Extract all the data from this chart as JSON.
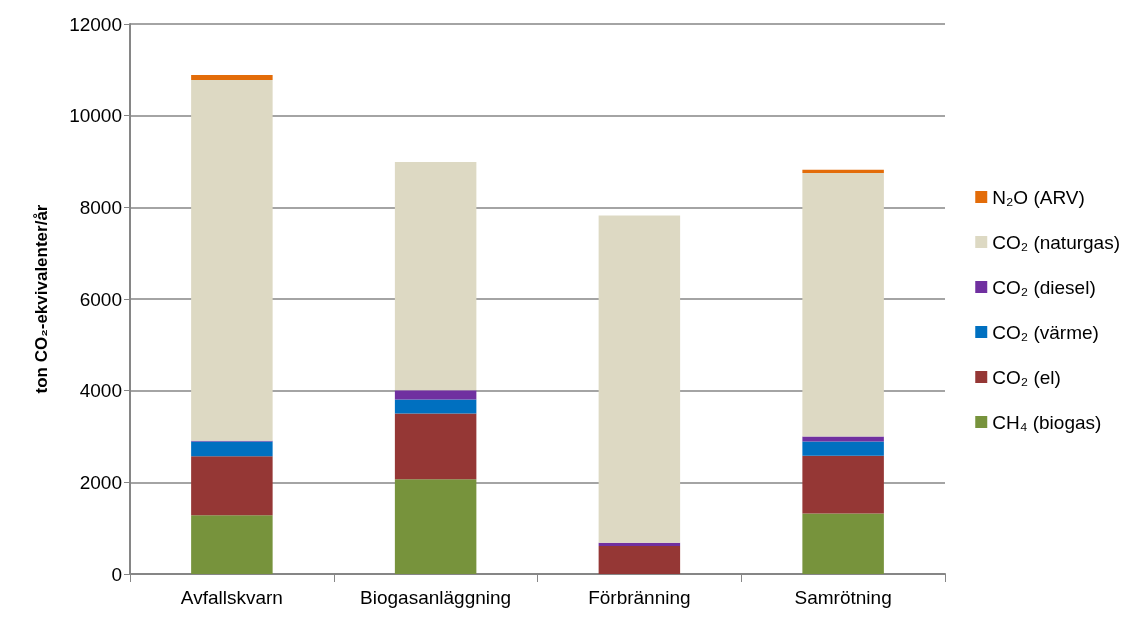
{
  "chart_data": {
    "type": "bar",
    "stacked": true,
    "ylabel": "ton CO₂-ekvivalenter/år",
    "categories": [
      "Avfallskvarn",
      "Biogasanläggning",
      "Förbränning",
      "Samrötning"
    ],
    "series": [
      {
        "name": "CH₄ (biogas)",
        "color": "#77933c",
        "values": [
          1280,
          2070,
          0,
          1320
        ]
      },
      {
        "name": "CO₂ (el)",
        "color": "#953735",
        "values": [
          1290,
          1430,
          610,
          1260
        ]
      },
      {
        "name": "CO₂ (värme)",
        "color": "#0070c0",
        "values": [
          320,
          310,
          0,
          310
        ]
      },
      {
        "name": "CO₂ (diesel)",
        "color": "#7030a0",
        "values": [
          20,
          200,
          70,
          110
        ]
      },
      {
        "name": "CO₂ (naturgas)",
        "color": "#ddd9c3",
        "values": [
          7870,
          4980,
          7140,
          5750
        ]
      },
      {
        "name": "N₂O (ARV)",
        "color": "#e36c09",
        "values": [
          110,
          0,
          0,
          70
        ]
      }
    ],
    "ylim": [
      0,
      12000
    ],
    "yticks": [
      0,
      2000,
      4000,
      6000,
      8000,
      10000,
      12000
    ],
    "grid": "y",
    "legend": "right"
  }
}
